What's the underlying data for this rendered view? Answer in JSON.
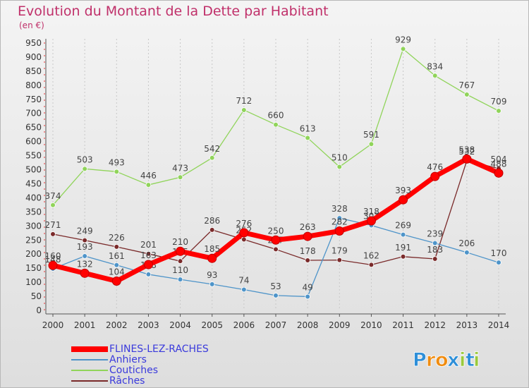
{
  "chart_data": {
    "type": "line",
    "title": "Evolution du Montant de la Dette par Habitant",
    "ylabel": "(en €)",
    "xlabel": "",
    "x": [
      "2000",
      "2001",
      "2002",
      "2003",
      "2004",
      "2005",
      "2006",
      "2007",
      "2008",
      "2009",
      "2010",
      "2011",
      "2012",
      "2013",
      "2014"
    ],
    "ylim": [
      0,
      950
    ],
    "yticks": [
      0,
      50,
      100,
      150,
      200,
      250,
      300,
      350,
      400,
      450,
      500,
      550,
      600,
      650,
      700,
      750,
      800,
      850,
      900,
      950
    ],
    "grid": "vertical dashed",
    "legend_placement": "bottom-left",
    "series": [
      {
        "name": "FLINES-LEZ-RACHES",
        "color": "#ff0000",
        "values": [
          160,
          132,
          104,
          163,
          210,
          185,
          276,
          250,
          263,
          282,
          318,
          393,
          476,
          538,
          488
        ]
      },
      {
        "name": "Anhiers",
        "color": "#4e94c9",
        "values": [
          148,
          193,
          161,
          128,
          110,
          93,
          74,
          53,
          49,
          328,
          302,
          269,
          239,
          206,
          170
        ]
      },
      {
        "name": "Coutiches",
        "color": "#90d45a",
        "values": [
          374,
          503,
          493,
          446,
          473,
          542,
          712,
          660,
          613,
          510,
          591,
          929,
          834,
          767,
          709
        ]
      },
      {
        "name": "Râches",
        "color": "#7a2a2a",
        "values": [
          271,
          249,
          226,
          201,
          175,
          286,
          252,
          217,
          178,
          179,
          162,
          191,
          183,
          532,
          504
        ]
      }
    ]
  },
  "brand": {
    "name": "Proxiti",
    "letters": [
      "P",
      "r",
      "o",
      "x",
      "i",
      "t",
      "i"
    ],
    "colors": [
      "#2e8fd8",
      "#f08c10",
      "#f08c10",
      "#2e8fd8",
      "#9ac93c",
      "#2e8fd8",
      "#9ac93c"
    ]
  }
}
